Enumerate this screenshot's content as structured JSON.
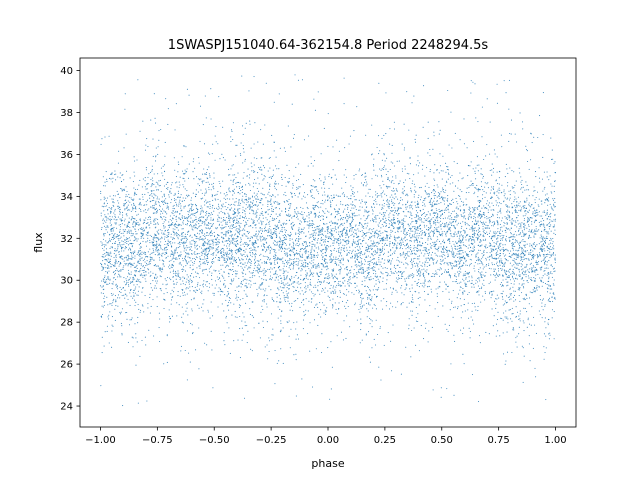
{
  "chart_data": {
    "type": "scatter",
    "title": "1SWASPJ151040.64-362154.8 Period 2248294.5s",
    "xlabel": "phase",
    "ylabel": "flux",
    "xlim": [
      -1.09,
      1.09
    ],
    "ylim": [
      23.0,
      40.6
    ],
    "xticks": [
      -1.0,
      -0.75,
      -0.5,
      -0.25,
      0.0,
      0.25,
      0.5,
      0.75,
      1.0
    ],
    "xtick_labels": [
      "−1.00",
      "−0.75",
      "−0.50",
      "−0.25",
      "0.00",
      "0.25",
      "0.50",
      "0.75",
      "1.00"
    ],
    "yticks": [
      24,
      26,
      28,
      30,
      32,
      34,
      36,
      38,
      40
    ],
    "ytick_labels": [
      "24",
      "26",
      "28",
      "30",
      "32",
      "34",
      "36",
      "38",
      "40"
    ],
    "grid": false,
    "legend": "none",
    "series": [
      {
        "color": "#1f77b4",
        "x": [
          -0.98,
          -0.9,
          -0.85,
          -0.78,
          -0.7,
          -0.62,
          -0.55,
          -0.47,
          -0.4,
          -0.32,
          -0.25,
          -0.18,
          -0.1,
          -0.02,
          0.02,
          0.1,
          0.18,
          0.25,
          0.32,
          0.4,
          0.47,
          0.55,
          0.62,
          0.7,
          0.78,
          0.85,
          0.9,
          0.98
        ],
        "y": [
          31.5,
          32.0,
          31.2,
          32.4,
          32.1,
          31.8,
          32.3,
          31.9,
          32.0,
          32.2,
          31.6,
          31.4,
          31.6,
          31.9,
          31.5,
          32.0,
          31.2,
          32.4,
          32.1,
          31.8,
          32.3,
          31.9,
          32.0,
          32.2,
          31.6,
          31.4,
          31.6,
          31.9
        ],
        "y_spread": [
          1.7,
          1.6,
          1.8,
          1.6,
          1.5,
          1.7,
          1.6,
          1.5,
          1.6,
          1.7,
          1.8,
          1.7,
          1.6,
          1.6,
          1.7,
          1.6,
          1.8,
          1.6,
          1.5,
          1.7,
          1.6,
          1.5,
          1.6,
          1.7,
          1.8,
          1.7,
          1.6,
          1.6
        ],
        "y_min": 23.7,
        "y_max": 39.8
      }
    ]
  }
}
